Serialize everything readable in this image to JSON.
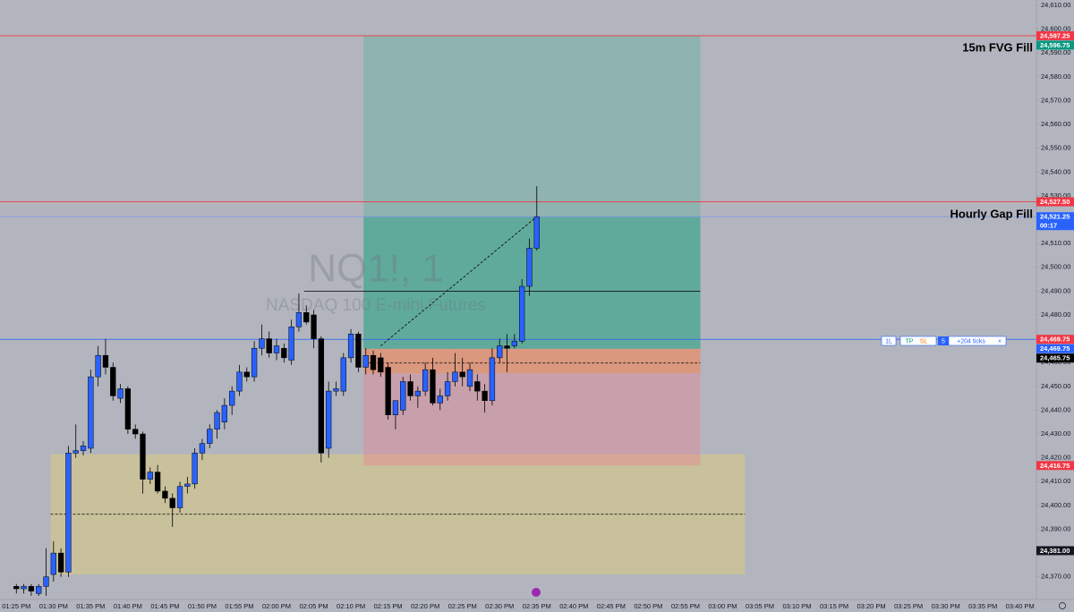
{
  "chart_data": {
    "type": "candlestick",
    "title": "NQ1!, 1",
    "subtitle": "NASDAQ 100 E-mini Futures",
    "up_color": "#2962ff",
    "down_color": "#000000",
    "x": [
      805,
      806,
      807,
      808,
      809,
      810,
      811,
      812,
      813,
      814,
      815,
      816,
      817,
      818,
      819,
      820,
      821,
      822,
      823,
      824,
      825,
      826,
      827,
      828,
      829,
      830,
      831,
      832,
      833,
      834,
      835,
      836,
      837,
      838,
      839,
      840,
      841,
      842,
      843,
      844,
      845,
      846,
      847,
      848,
      849,
      850,
      851,
      852,
      853,
      854,
      855,
      856,
      857,
      858,
      859,
      860,
      861,
      862,
      863,
      864,
      865,
      866,
      867,
      868,
      869,
      870,
      871,
      872,
      873,
      874,
      875
    ],
    "open": [
      24366,
      24365,
      24366,
      24363,
      24366,
      24371,
      24380,
      24372,
      24422,
      24423,
      24424,
      24454,
      24463,
      24458,
      24445,
      24449,
      24432,
      24430,
      24411,
      24414,
      24406,
      24403,
      24399,
      24408,
      24409,
      24422,
      24426,
      24432,
      24435,
      24442,
      24448,
      24456,
      24454,
      24466,
      24470,
      24464,
      24466,
      24461,
      24475,
      24481,
      24480,
      24470,
      24424,
      24448,
      24448,
      24462,
      24472,
      24458,
      24463,
      24462,
      24458,
      24438,
      24440,
      24452,
      24446,
      24448,
      24457,
      24443,
      24446,
      24452,
      24456,
      24450,
      24452,
      24448,
      24444,
      24462,
      24467,
      24467,
      24469,
      24492,
      24508
    ],
    "high": [
      24367,
      24367,
      24367,
      24367,
      24382,
      24385,
      24382,
      24425,
      24434,
      24427,
      24457,
      24467,
      24470,
      24460,
      24451,
      24450,
      24434,
      24431,
      24416,
      24417,
      24408,
      24405,
      24410,
      24412,
      24424,
      24428,
      24434,
      24440,
      24445,
      24450,
      24459,
      24458,
      24469,
      24476,
      24473,
      24470,
      24468,
      24478,
      24489,
      24484,
      24482,
      24471,
      24452,
      24452,
      24464,
      24474,
      24473,
      24466,
      24465,
      24464,
      24460,
      24444,
      24454,
      24455,
      24450,
      24460,
      24462,
      24449,
      24456,
      24464,
      24462,
      24460,
      24455,
      24451,
      24466,
      24470,
      24472,
      24472,
      24495,
      24512,
      24534
    ],
    "low": [
      24363,
      24363,
      24362,
      24362,
      24362,
      24368,
      24370,
      24370,
      24420,
      24421,
      24422,
      24450,
      24455,
      24444,
      24443,
      24430,
      24428,
      24405,
      24409,
      24405,
      24401,
      24391,
      24397,
      24405,
      24407,
      24419,
      24424,
      24428,
      24432,
      24438,
      24446,
      24452,
      24452,
      24463,
      24462,
      24461,
      24460,
      24459,
      24473,
      24476,
      24466,
      24418,
      24420,
      24446,
      24446,
      24460,
      24456,
      24455,
      24455,
      24454,
      24436,
      24432,
      24438,
      24444,
      24441,
      24446,
      24442,
      24440,
      24444,
      24450,
      24450,
      24448,
      24444,
      24439,
      24442,
      24460,
      24456,
      24466,
      24468,
      24488,
      24507
    ],
    "close": [
      24365,
      24366,
      24364,
      24366,
      24370,
      24380,
      24372,
      24422,
      24423,
      24425,
      24454,
      24463,
      24458,
      24446,
      24449,
      24432,
      24430,
      24411,
      24414,
      24406,
      24403,
      24399,
      24408,
      24409,
      24422,
      24426,
      24432,
      24439,
      24442,
      24448,
      24456,
      24454,
      24466,
      24470,
      24464,
      24467,
      24462,
      24475,
      24481,
      24477,
      24470,
      24422,
      24448,
      24449,
      24462,
      24472,
      24458,
      24463,
      24457,
      24456,
      24438,
      24444,
      24452,
      24446,
      24448,
      24457,
      24443,
      24446,
      24452,
      24456,
      24454,
      24457,
      24448,
      24444,
      24462,
      24467,
      24466,
      24469,
      24492,
      24508,
      24521.25
    ],
    "xlim": [
      802.8,
      942.2
    ],
    "ylim": [
      24360.5,
      24612.25
    ],
    "xticks": [
      {
        "value": 805,
        "label": "01:25 PM"
      },
      {
        "value": 810,
        "label": "01:30 PM"
      },
      {
        "value": 815,
        "label": "01:35 PM"
      },
      {
        "value": 820,
        "label": "01:40 PM"
      },
      {
        "value": 825,
        "label": "01:45 PM"
      },
      {
        "value": 830,
        "label": "01:50 PM"
      },
      {
        "value": 835,
        "label": "01:55 PM"
      },
      {
        "value": 840,
        "label": "02:00 PM"
      },
      {
        "value": 845,
        "label": "02:05 PM"
      },
      {
        "value": 850,
        "label": "02:10 PM"
      },
      {
        "value": 855,
        "label": "02:15 PM"
      },
      {
        "value": 860,
        "label": "02:20 PM"
      },
      {
        "value": 865,
        "label": "02:25 PM"
      },
      {
        "value": 870,
        "label": "02:30 PM"
      },
      {
        "value": 875,
        "label": "02:35 PM"
      },
      {
        "value": 880,
        "label": "02:40 PM"
      },
      {
        "value": 885,
        "label": "02:45 PM"
      },
      {
        "value": 890,
        "label": "02:50 PM"
      },
      {
        "value": 895,
        "label": "02:55 PM"
      },
      {
        "value": 900,
        "label": "03:00 PM"
      },
      {
        "value": 905,
        "label": "03:05 PM"
      },
      {
        "value": 910,
        "label": "03:10 PM"
      },
      {
        "value": 915,
        "label": "03:15 PM"
      },
      {
        "value": 920,
        "label": "03:20 PM"
      },
      {
        "value": 925,
        "label": "03:25 PM"
      },
      {
        "value": 930,
        "label": "03:30 PM"
      },
      {
        "value": 935,
        "label": "03:35 PM"
      },
      {
        "value": 940,
        "label": "03:40 PM"
      }
    ],
    "yticks": [
      {
        "value": 24370,
        "label": "24,370.00"
      },
      {
        "value": 24380,
        "label": "24,380.00"
      },
      {
        "value": 24390,
        "label": "24,390.00"
      },
      {
        "value": 24400,
        "label": "24,400.00"
      },
      {
        "value": 24410,
        "label": "24,410.00"
      },
      {
        "value": 24420,
        "label": "24,420.00"
      },
      {
        "value": 24430,
        "label": "24,430.00"
      },
      {
        "value": 24440,
        "label": "24,440.00"
      },
      {
        "value": 24450,
        "label": "24,450.00"
      },
      {
        "value": 24460,
        "label": "24,460.00"
      },
      {
        "value": 24470,
        "label": "24,470.00"
      },
      {
        "value": 24480,
        "label": "24,480.00"
      },
      {
        "value": 24490,
        "label": "24,490.00"
      },
      {
        "value": 24500,
        "label": "24,500.00"
      },
      {
        "value": 24510,
        "label": "24,510.00"
      },
      {
        "value": 24520,
        "label": "24,520.00"
      },
      {
        "value": 24530,
        "label": "24,530.00"
      },
      {
        "value": 24540,
        "label": "24,540.00"
      },
      {
        "value": 24550,
        "label": "24,550.00"
      },
      {
        "value": 24560,
        "label": "24,560.00"
      },
      {
        "value": 24570,
        "label": "24,570.00"
      },
      {
        "value": 24580,
        "label": "24,580.00"
      },
      {
        "value": 24590,
        "label": "24,590.00"
      },
      {
        "value": 24600,
        "label": "24,600.00"
      },
      {
        "value": 24610,
        "label": "24,610.00"
      }
    ],
    "zones": [
      {
        "x": [
          809.6,
          903
        ],
        "y": [
          24371,
          24421.5
        ],
        "color": "rgba(222,205,120,0.5)"
      },
      {
        "x": [
          851.7,
          897
        ],
        "y": [
          24465.75,
          24597.25
        ],
        "color": "rgba(76,175,150,0.35)"
      },
      {
        "x": [
          851.7,
          897
        ],
        "y": [
          24465.75,
          24521.25
        ],
        "color": "rgba(40,160,130,0.45)"
      },
      {
        "x": [
          851.7,
          897
        ],
        "y": [
          24416.75,
          24465.75
        ],
        "color": "rgba(242,120,140,0.35)"
      },
      {
        "x": [
          851.7,
          897
        ],
        "y": [
          24455.5,
          24465.75
        ],
        "color": "rgba(245,140,60,0.4)"
      }
    ],
    "hlines": [
      {
        "value": 24597.25,
        "color": "#f23645"
      },
      {
        "value": 24527.5,
        "color": "#f23645"
      },
      {
        "value": 24521.25,
        "color": "#7e97e6"
      },
      {
        "value": 24469.75,
        "color": "#2962ff"
      }
    ],
    "segments": [
      {
        "x": [
          843.7,
          897
        ],
        "y": [
          24490,
          24490
        ],
        "color": "#000000",
        "dashed": false
      },
      {
        "x": [
          851.7,
          897
        ],
        "y": [
          24459.8,
          24459.8
        ],
        "color": "#000000",
        "dashed": true
      },
      {
        "x": [
          809.6,
          903
        ],
        "y": [
          24396.3,
          24396.3
        ],
        "color": "#000000",
        "dashed": true
      },
      {
        "x": [
          854,
          875
        ],
        "y": [
          24467,
          24521.25
        ],
        "color": "#000000",
        "dashed": true
      }
    ],
    "annotations": [
      "15m FVG Fill",
      "Hourly Gap Fill"
    ],
    "price_labels": [
      {
        "value": 24597.25,
        "label": "24,597.25",
        "color": "#f23645"
      },
      {
        "value": 24596.75,
        "label": "24,596.75",
        "color": "#089981"
      },
      {
        "value": 24527.5,
        "label": "24,527.50",
        "color": "#f23645"
      },
      {
        "value": 24521.25,
        "label": "24,521.25",
        "color": "#2962ff",
        "countdown": "00:17"
      },
      {
        "value": 24469.75,
        "label": "24,469.75",
        "color": "#f23645"
      },
      {
        "value": 24469.75,
        "label": "24,469.75",
        "color": "#2962ff"
      },
      {
        "value": 24465.75,
        "label": "24,465.75",
        "color": "#000000"
      },
      {
        "value": 24416.75,
        "label": "24,416.75",
        "color": "#f23645"
      },
      {
        "value": 24381,
        "label": "24,381.00",
        "color": "#131722"
      }
    ],
    "position_tool": [
      "1L",
      "TP",
      "SL",
      "5",
      "+204 ticks"
    ]
  }
}
